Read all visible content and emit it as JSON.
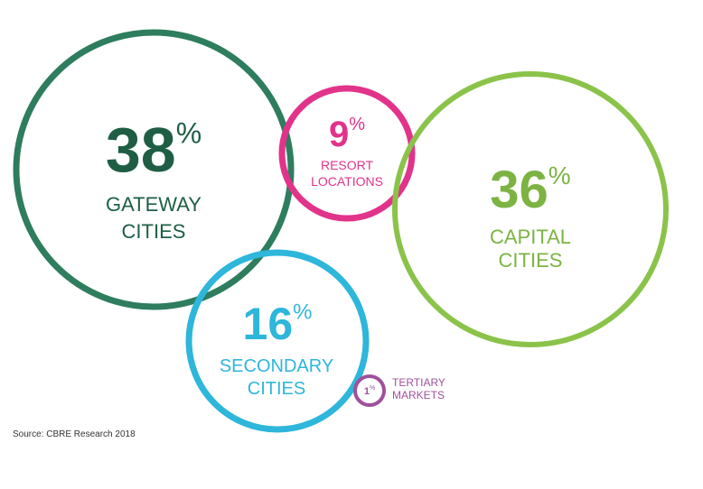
{
  "chart_data": {
    "type": "bubble",
    "unit": "%",
    "categories": [
      {
        "label_lines": [
          "GATEWAY",
          "CITIES"
        ],
        "value": 38,
        "color": "#2E7D5E",
        "value_color": "#1E5E45"
      },
      {
        "label_lines": [
          "RESORT",
          "LOCATIONS"
        ],
        "value": 9,
        "color": "#E2338A",
        "value_color": "#E2338A"
      },
      {
        "label_lines": [
          "CAPITAL",
          "CITIES"
        ],
        "value": 36,
        "color": "#8BC34A",
        "value_color": "#7CB342"
      },
      {
        "label_lines": [
          "SECONDARY",
          "CITIES"
        ],
        "value": 16,
        "color": "#2EB6DB",
        "value_color": "#2EB6DB"
      },
      {
        "label_lines": [
          "TERTIARY",
          "MARKETS"
        ],
        "value": 1,
        "color": "#A0519B",
        "value_color": "#A0519B"
      }
    ]
  },
  "source": "Source: CBRE Research 2018"
}
